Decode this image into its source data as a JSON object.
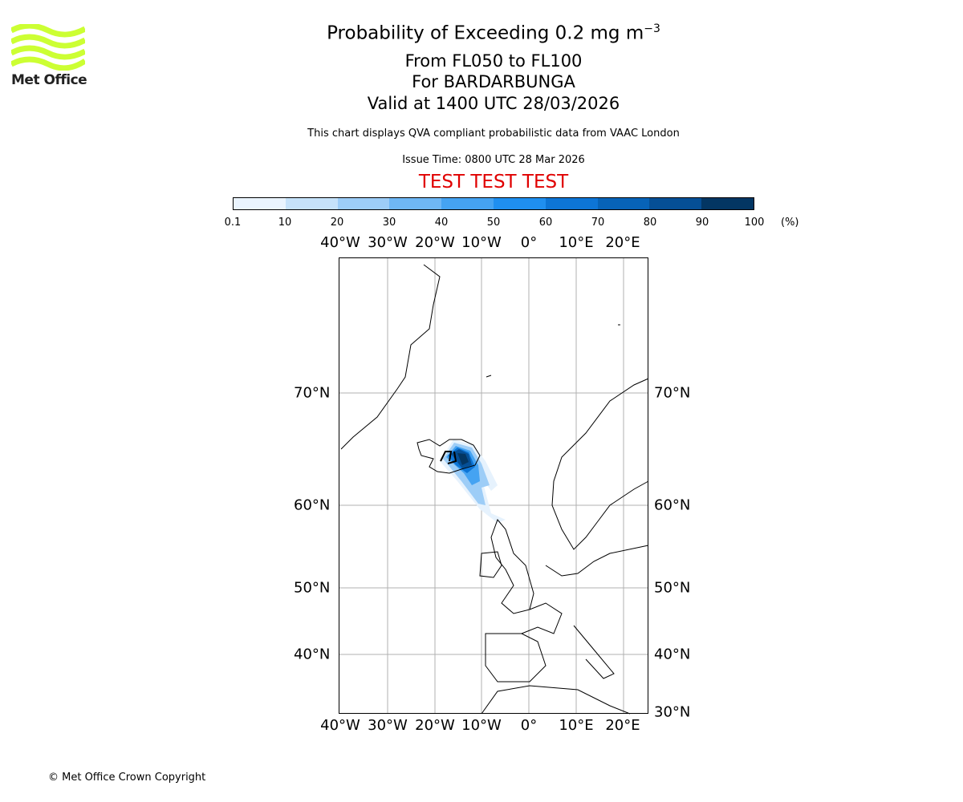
{
  "logo": {
    "text": "Met Office",
    "color": "#ccff33"
  },
  "title": {
    "main": "Probability of Exceeding 0.2 mg m",
    "main_sup": "−3",
    "levels": "From FL050 to FL100",
    "volcano": "For BARDARBUNGA",
    "valid": "Valid at 1400 UTC 28/03/2026"
  },
  "subtitle": "This chart displays QVA compliant probabilistic data from VAAC London",
  "issue_time": "Issue Time: 0800 UTC 28 Mar 2026",
  "test_banner": {
    "text": "TEST TEST TEST",
    "color": "#e00000"
  },
  "colorbar": {
    "ticks": [
      "0.1",
      "10",
      "20",
      "30",
      "40",
      "50",
      "60",
      "70",
      "80",
      "90",
      "100"
    ],
    "unit": "(%)",
    "colors": [
      "#eaf4fe",
      "#c6e2fa",
      "#9dcdf7",
      "#6fb7f5",
      "#45a3f2",
      "#1f8ff0",
      "#0d75d6",
      "#0763b8",
      "#054f96",
      "#033663"
    ]
  },
  "map": {
    "lon_labels": [
      "40°W",
      "30°W",
      "20°W",
      "10°W",
      "0°",
      "10°E",
      "20°E"
    ],
    "lat_labels_left": [
      "70°N",
      "60°N",
      "50°N",
      "40°N"
    ],
    "lat_labels_right": [
      "70°N",
      "60°N",
      "50°N",
      "40°N",
      "30°N"
    ]
  },
  "footer": "© Met Office Crown Copyright"
}
